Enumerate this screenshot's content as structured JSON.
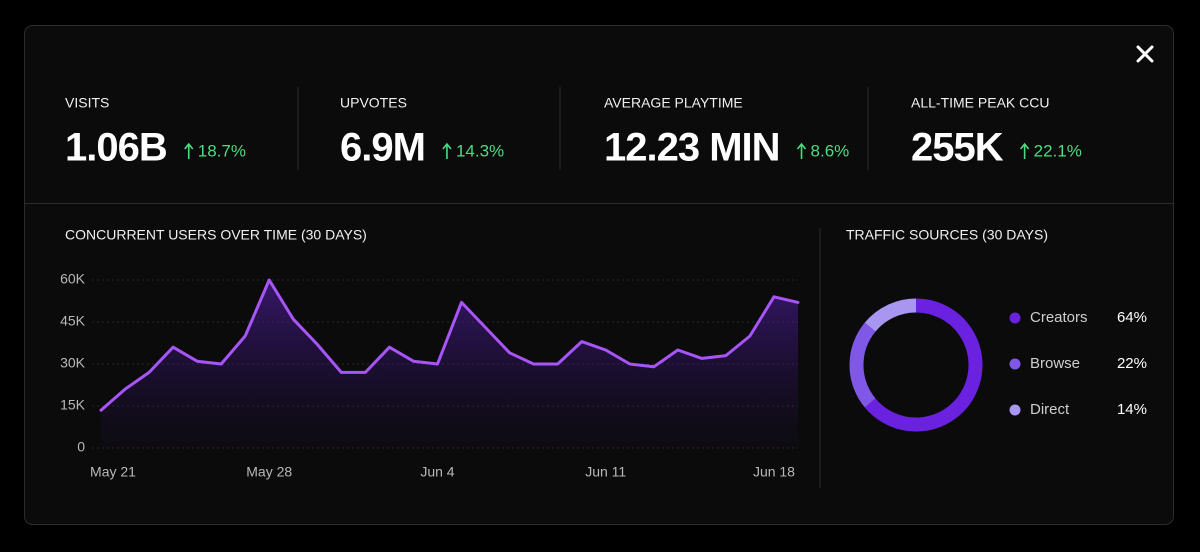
{
  "stats": [
    {
      "label": "VISITS",
      "value": "1.06B",
      "change": "18.7%"
    },
    {
      "label": "UPVOTES",
      "value": "6.9M",
      "change": "14.3%"
    },
    {
      "label": "AVERAGE PLAYTIME",
      "value": "12.23 MIN",
      "change": "8.6%"
    },
    {
      "label": "ALL-TIME PEAK CCU",
      "value": "255K",
      "change": "22.1%"
    }
  ],
  "chart_data": [
    {
      "type": "line",
      "title": "CONCURRENT USERS OVER TIME (30 DAYS)",
      "categories": [
        "May 21",
        null,
        null,
        null,
        null,
        null,
        null,
        "May 28",
        null,
        null,
        null,
        null,
        null,
        null,
        "Jun 4",
        null,
        null,
        null,
        null,
        null,
        null,
        "Jun 11",
        null,
        null,
        null,
        null,
        null,
        null,
        "Jun 18",
        null
      ],
      "values": [
        13500,
        21000,
        27000,
        36000,
        31000,
        30000,
        40000,
        60000,
        46000,
        37000,
        27000,
        27000,
        36000,
        31000,
        30000,
        52000,
        43000,
        34000,
        30000,
        30000,
        38000,
        35000,
        30000,
        29000,
        35000,
        32000,
        33000,
        40000,
        54000,
        52000
      ],
      "color": "#a855f7",
      "ylim": [
        0,
        60000
      ],
      "yticks": [
        0,
        {
          "value": 15000,
          "label": "15K"
        },
        {
          "value": 30000,
          "label": "30K"
        },
        {
          "value": 45000,
          "label": "45K"
        },
        {
          "value": 60000,
          "label": "60K"
        }
      ],
      "grid": true
    },
    {
      "type": "donut",
      "title": "TRAFFIC SOURCES (30 DAYS)",
      "categories": [
        "Creators",
        "Browse",
        "Direct"
      ],
      "values": [
        64,
        22,
        14
      ],
      "value_labels": [
        "64%",
        "22%",
        "14%"
      ],
      "colors": [
        "#6a22e0",
        "#7f58e8",
        "#a996f0"
      ]
    }
  ]
}
